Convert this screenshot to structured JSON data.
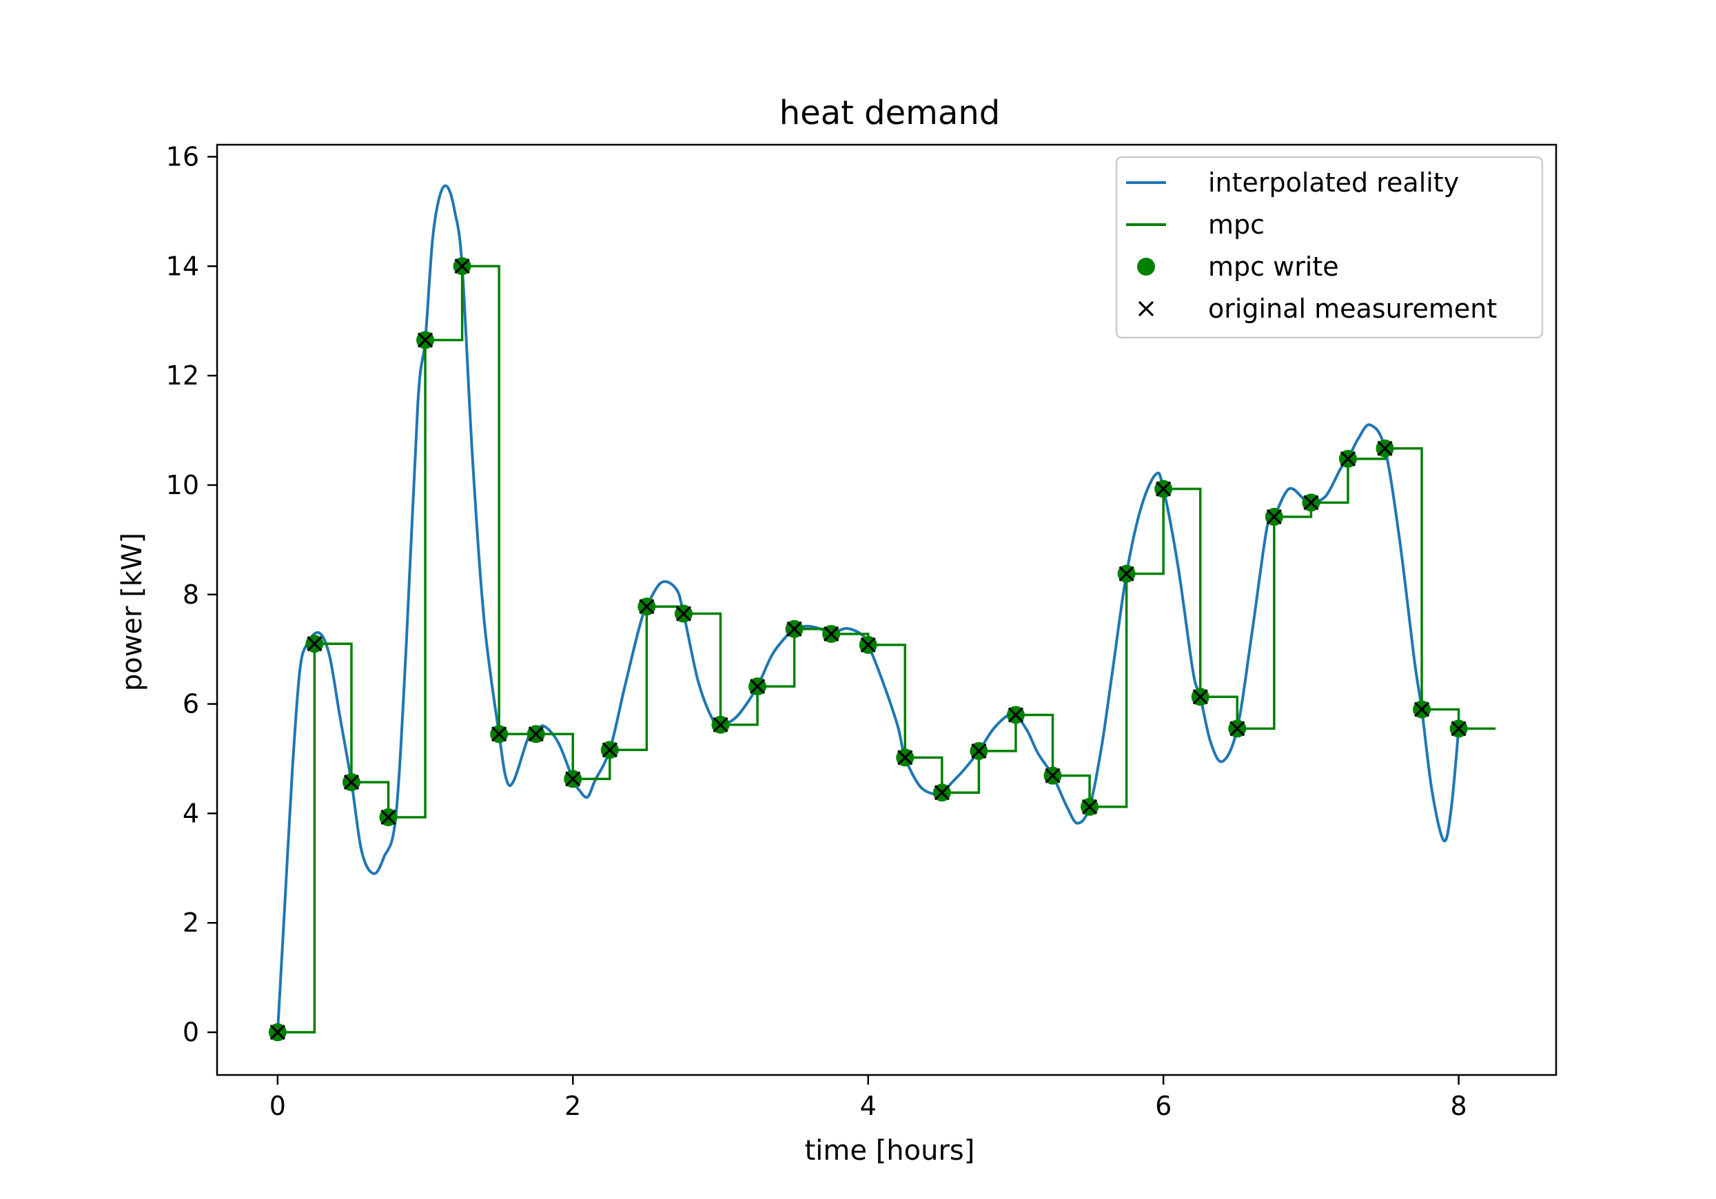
{
  "chart_data": {
    "type": "line",
    "title": "heat demand",
    "xlabel": "time [hours]",
    "ylabel": "power [kW]",
    "xlim": [
      -0.41,
      8.66
    ],
    "ylim": [
      -0.78,
      16.22
    ],
    "xticks": [
      0,
      2,
      4,
      6,
      8
    ],
    "yticks": [
      0,
      2,
      4,
      6,
      8,
      10,
      12,
      14,
      16
    ],
    "grid": false,
    "legend_position": "top-right",
    "colors": {
      "interpolated": "#1f77b4",
      "mpc": "#008000",
      "marker_fill": "#008000",
      "measurement": "#000000"
    },
    "legend": [
      {
        "label": "interpolated reality",
        "kind": "line",
        "color": "#1f77b4"
      },
      {
        "label": "mpc",
        "kind": "line",
        "color": "#008000"
      },
      {
        "label": "mpc write",
        "kind": "dot",
        "color": "#008000"
      },
      {
        "label": "original measurement",
        "kind": "x",
        "color": "#000000"
      }
    ],
    "measurements": {
      "x": [
        0,
        0.25,
        0.5,
        0.75,
        1.0,
        1.25,
        1.5,
        1.75,
        2.0,
        2.25,
        2.5,
        2.75,
        3.0,
        3.25,
        3.5,
        3.75,
        4.0,
        4.25,
        4.5,
        4.75,
        5.0,
        5.25,
        5.5,
        5.75,
        6.0,
        6.25,
        6.5,
        6.75,
        7.0,
        7.25,
        7.5,
        7.75,
        8.0
      ],
      "y": [
        0.0,
        7.1,
        4.57,
        3.93,
        12.65,
        14.0,
        5.45,
        5.45,
        4.63,
        5.16,
        7.78,
        7.65,
        5.62,
        6.32,
        7.37,
        7.28,
        7.08,
        5.02,
        4.38,
        5.14,
        5.8,
        4.69,
        4.12,
        8.38,
        9.93,
        6.13,
        5.55,
        9.42,
        9.68,
        10.48,
        10.67,
        5.9,
        5.55
      ]
    },
    "mpc_step": {
      "x_end": 8.25
    },
    "interpolated_reality": {
      "x": [
        0,
        0.05,
        0.1,
        0.15,
        0.2,
        0.28,
        0.35,
        0.42,
        0.5,
        0.57,
        0.65,
        0.72,
        0.8,
        0.87,
        0.95,
        1.0,
        1.05,
        1.1,
        1.15,
        1.2,
        1.25,
        1.32,
        1.4,
        1.5,
        1.55,
        1.6,
        1.7,
        1.75,
        1.8,
        1.9,
        2.0,
        2.05,
        2.1,
        2.15,
        2.25,
        2.35,
        2.45,
        2.5,
        2.6,
        2.7,
        2.75,
        2.85,
        2.95,
        3.0,
        3.08,
        3.15,
        3.25,
        3.35,
        3.45,
        3.5,
        3.6,
        3.7,
        3.75,
        3.85,
        3.95,
        4.0,
        4.1,
        4.2,
        4.25,
        4.35,
        4.45,
        4.5,
        4.58,
        4.65,
        4.75,
        4.85,
        4.95,
        5.0,
        5.08,
        5.15,
        5.25,
        5.35,
        5.42,
        5.5,
        5.58,
        5.65,
        5.75,
        5.85,
        5.95,
        6.0,
        6.1,
        6.2,
        6.25,
        6.32,
        6.4,
        6.5,
        6.6,
        6.7,
        6.75,
        6.85,
        6.95,
        7.0,
        7.1,
        7.2,
        7.25,
        7.32,
        7.4,
        7.5,
        7.6,
        7.7,
        7.75,
        7.82,
        7.9,
        7.95,
        8.0
      ],
      "y": [
        0.0,
        2.4,
        4.8,
        6.6,
        7.1,
        7.3,
        6.9,
        5.8,
        4.57,
        3.3,
        2.9,
        3.2,
        3.93,
        7.0,
        11.5,
        12.65,
        14.5,
        15.3,
        15.45,
        15.0,
        14.0,
        10.5,
        7.5,
        5.45,
        4.62,
        4.6,
        5.4,
        5.45,
        5.6,
        5.3,
        4.63,
        4.4,
        4.3,
        4.6,
        5.16,
        6.3,
        7.4,
        7.78,
        8.22,
        8.1,
        7.65,
        6.4,
        5.7,
        5.62,
        5.7,
        5.9,
        6.32,
        6.9,
        7.25,
        7.37,
        7.42,
        7.35,
        7.28,
        7.38,
        7.28,
        7.08,
        6.4,
        5.6,
        5.02,
        4.5,
        4.35,
        4.38,
        4.6,
        4.8,
        5.14,
        5.55,
        5.8,
        5.8,
        5.5,
        5.1,
        4.69,
        4.1,
        3.82,
        4.12,
        5.2,
        6.5,
        8.38,
        9.6,
        10.2,
        9.93,
        8.5,
        6.6,
        6.13,
        5.3,
        4.95,
        5.55,
        7.3,
        9.2,
        9.42,
        9.93,
        9.75,
        9.68,
        9.8,
        10.3,
        10.48,
        10.85,
        11.1,
        10.67,
        9.0,
        6.8,
        5.9,
        4.4,
        3.5,
        4.1,
        5.55
      ]
    }
  }
}
